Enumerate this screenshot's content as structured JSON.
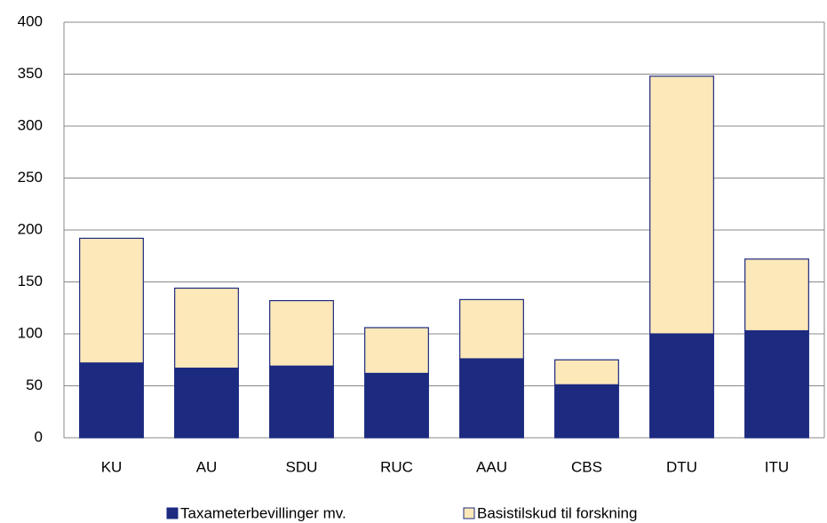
{
  "chart_data": {
    "type": "stacked_bar",
    "categories": [
      "KU",
      "AU",
      "SDU",
      "RUC",
      "AAU",
      "CBS",
      "DTU",
      "ITU"
    ],
    "series": [
      {
        "name": "Taxameterbevillinger mv.",
        "color": "#1c2a80",
        "values": [
          72,
          67,
          69,
          62,
          76,
          51,
          100,
          103
        ]
      },
      {
        "name": "Basistilskud til forskning",
        "color": "#fde8b9",
        "values": [
          120,
          77,
          63,
          44,
          57,
          24,
          248,
          69
        ]
      }
    ],
    "ylim": [
      0,
      400
    ],
    "yticks": [
      0,
      50,
      100,
      150,
      200,
      250,
      300,
      350,
      400
    ],
    "grid": true,
    "legend": "bottom"
  }
}
